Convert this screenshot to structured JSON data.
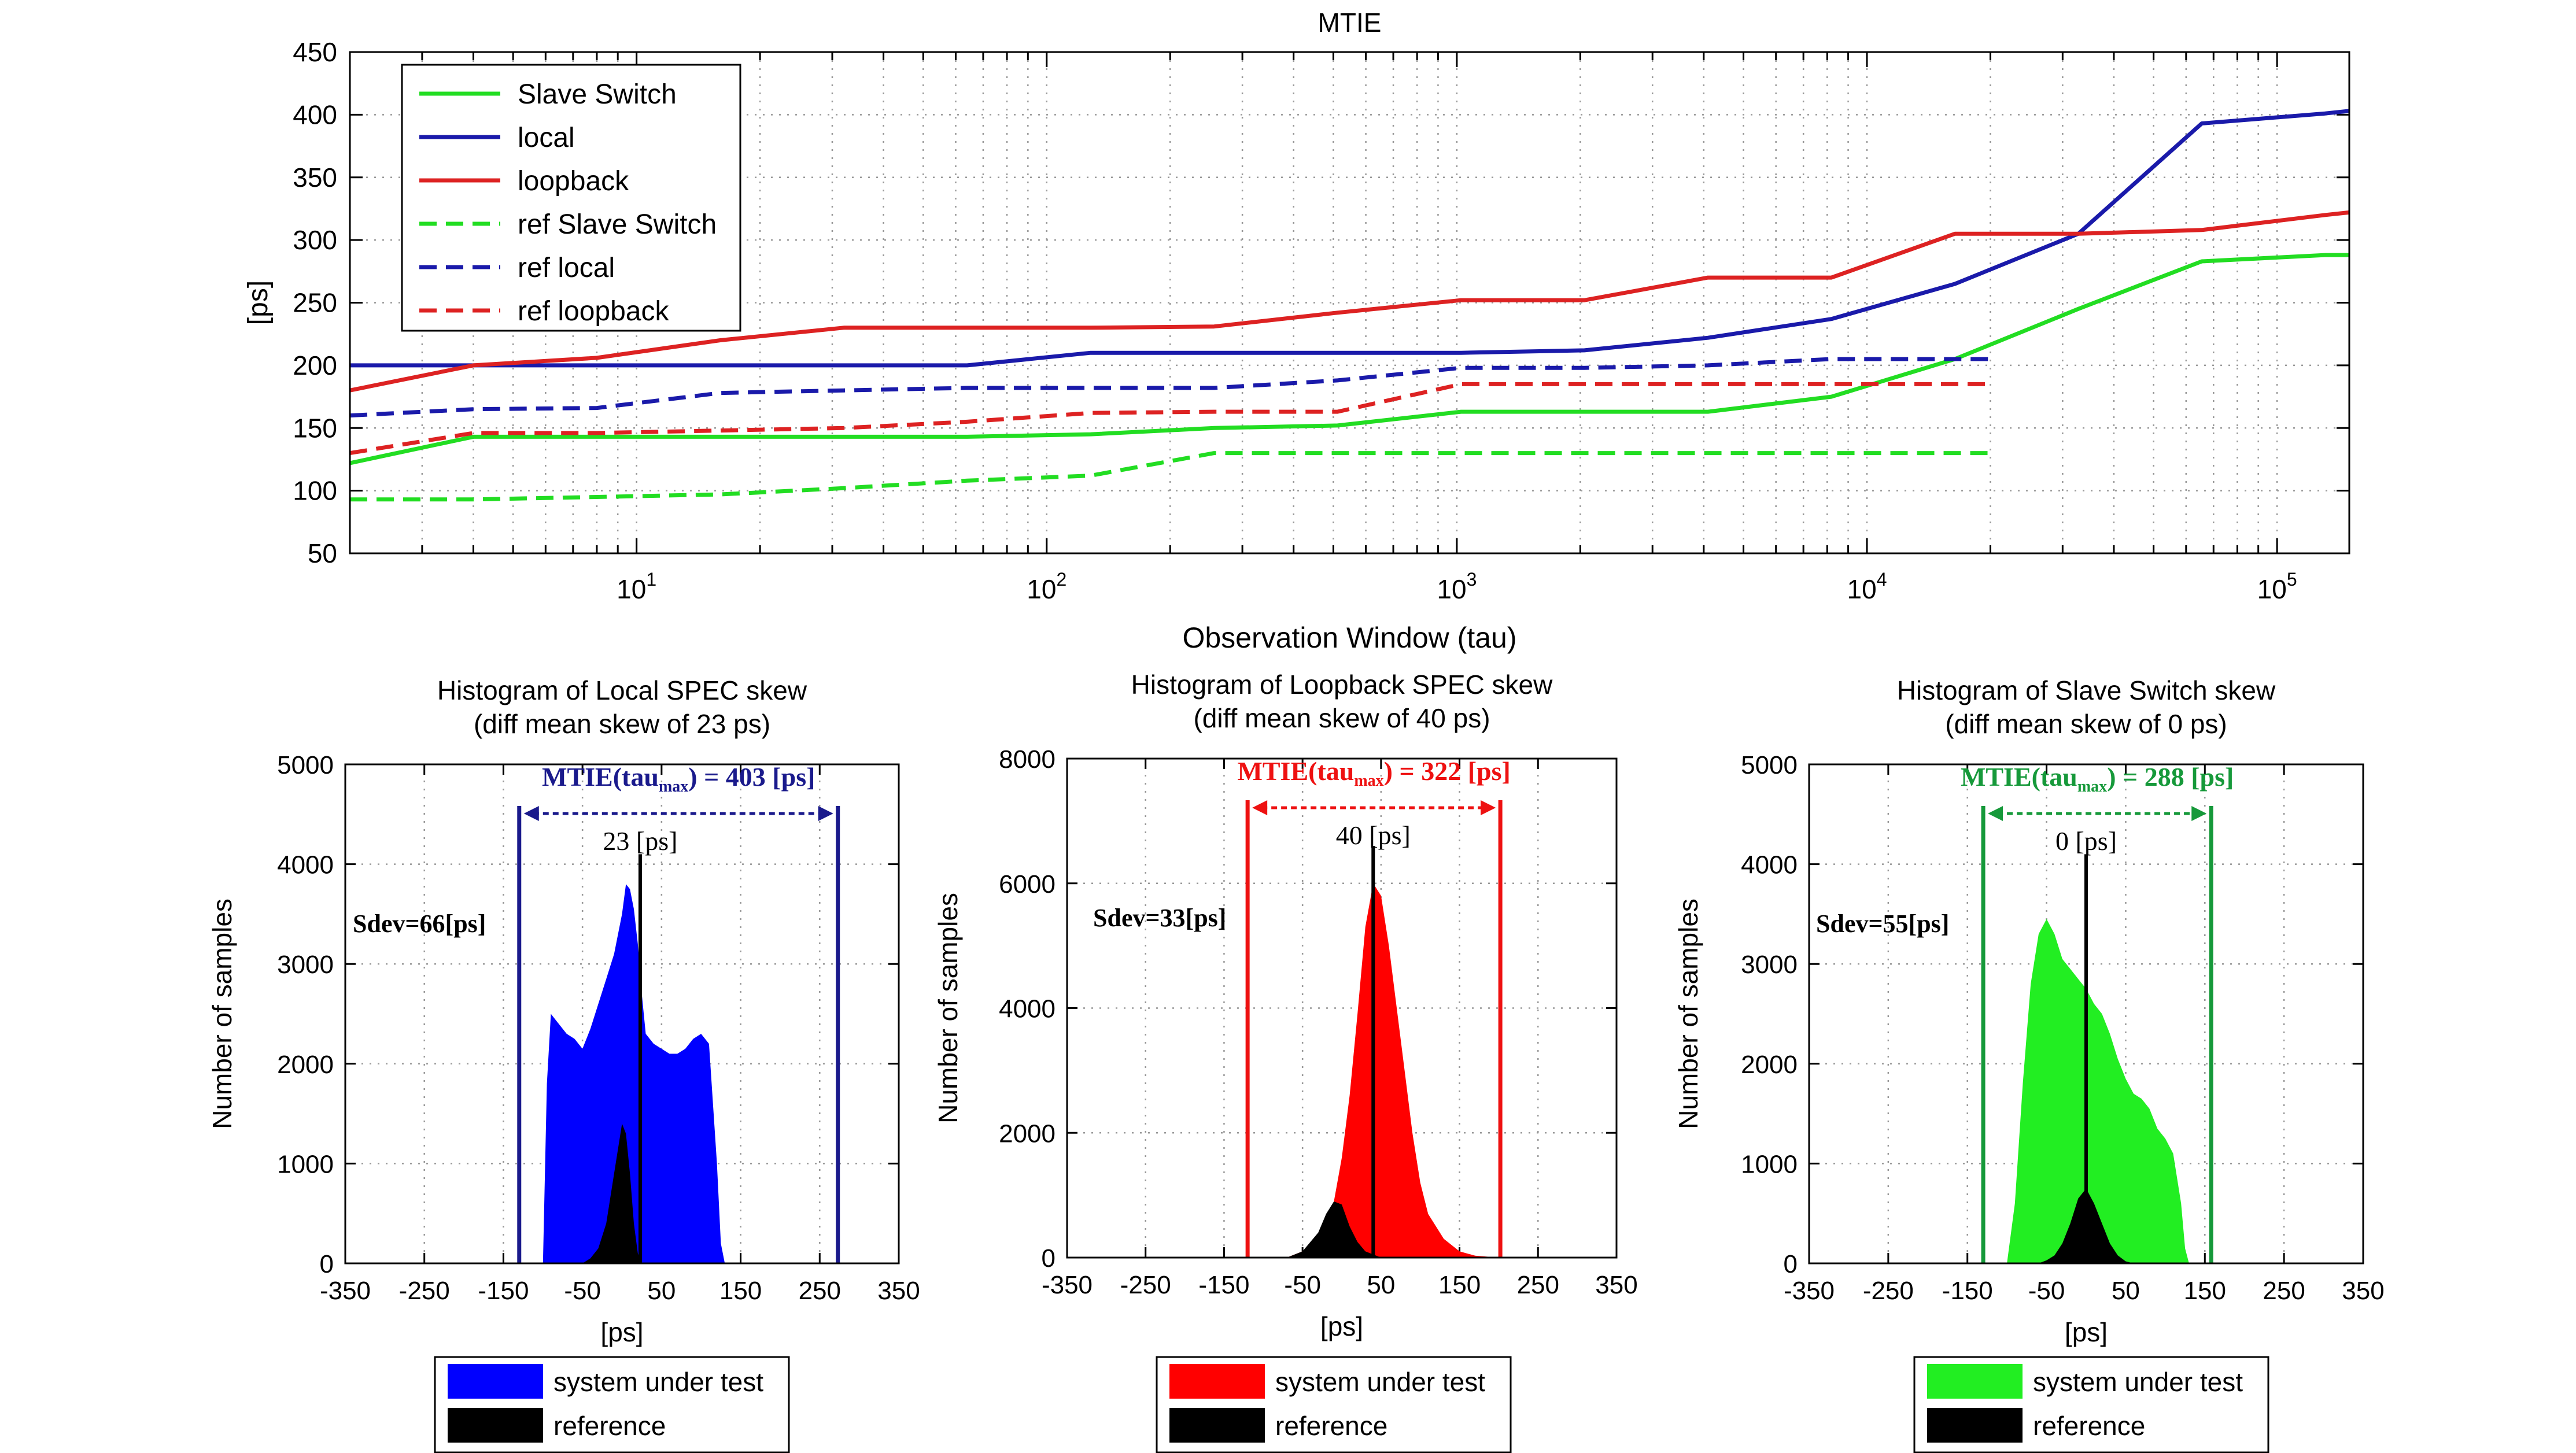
{
  "chart_data": [
    {
      "type": "line",
      "title": "MTIE",
      "xlabel": "Observation Window (tau)",
      "ylabel": "[ps]",
      "xscale": "log",
      "xlim": [
        2,
        150000
      ],
      "ylim": [
        50,
        450
      ],
      "yticks": [
        50,
        100,
        150,
        200,
        250,
        300,
        350,
        400,
        450
      ],
      "xticks": [
        {
          "base": "10",
          "exp": "1"
        },
        {
          "base": "10",
          "exp": "2"
        },
        {
          "base": "10",
          "exp": "3"
        },
        {
          "base": "10",
          "exp": "4"
        },
        {
          "base": "10",
          "exp": "5"
        }
      ],
      "grid": true,
      "legend_position": "top-left",
      "series": [
        {
          "name": "Slave Switch",
          "color": "#22dd22",
          "dash": false,
          "x": [
            2,
            4,
            8,
            16,
            32,
            64,
            128,
            256,
            512,
            1024,
            2048,
            4096,
            8192,
            16384,
            32768,
            65536,
            131072,
            150000
          ],
          "y": [
            122,
            143,
            143,
            143,
            143,
            143,
            145,
            150,
            152,
            163,
            163,
            163,
            175,
            205,
            245,
            283,
            288,
            288
          ]
        },
        {
          "name": "local",
          "color": "#1a1aaa",
          "dash": false,
          "x": [
            2,
            4,
            8,
            16,
            32,
            64,
            128,
            256,
            512,
            1024,
            2048,
            4096,
            8192,
            16384,
            32768,
            65536,
            131072,
            150000
          ],
          "y": [
            200,
            200,
            200,
            200,
            200,
            200,
            210,
            210,
            210,
            210,
            212,
            222,
            237,
            265,
            305,
            393,
            401,
            403
          ]
        },
        {
          "name": "loopback",
          "color": "#dd2222",
          "dash": false,
          "x": [
            2,
            4,
            8,
            16,
            32,
            64,
            128,
            256,
            512,
            1024,
            2048,
            4096,
            8192,
            16384,
            32768,
            65536,
            131072,
            150000
          ],
          "y": [
            180,
            200,
            206,
            220,
            230,
            230,
            230,
            231,
            242,
            252,
            252,
            270,
            270,
            305,
            305,
            308,
            320,
            322
          ]
        },
        {
          "name": "ref Slave Switch",
          "color": "#22dd22",
          "dash": true,
          "x": [
            2,
            4,
            8,
            16,
            32,
            64,
            128,
            256,
            512,
            1024,
            2048,
            4096,
            8192,
            16384,
            20000
          ],
          "y": [
            93,
            93,
            95,
            97,
            102,
            108,
            112,
            130,
            130,
            130,
            130,
            130,
            130,
            130,
            130
          ]
        },
        {
          "name": "ref local",
          "color": "#1a1aaa",
          "dash": true,
          "x": [
            2,
            4,
            8,
            16,
            32,
            64,
            128,
            256,
            512,
            1024,
            2048,
            4096,
            8192,
            16384,
            20000
          ],
          "y": [
            160,
            165,
            166,
            178,
            180,
            182,
            182,
            182,
            188,
            198,
            198,
            200,
            205,
            205,
            205
          ]
        },
        {
          "name": "ref loopback",
          "color": "#dd2222",
          "dash": true,
          "x": [
            2,
            4,
            8,
            16,
            32,
            64,
            128,
            256,
            512,
            1024,
            2048,
            4096,
            8192,
            16384,
            20000
          ],
          "y": [
            130,
            146,
            146,
            148,
            150,
            155,
            162,
            163,
            163,
            185,
            185,
            185,
            185,
            185,
            185
          ]
        }
      ]
    },
    {
      "type": "histogram",
      "title": "Histogram of Local SPEC skew",
      "subtitle": "(diff mean skew of 23 ps)",
      "xlabel": "[ps]",
      "ylabel": "Number of samples",
      "xlim": [
        -350,
        350
      ],
      "ylim": [
        0,
        5000
      ],
      "xticks": [
        -350,
        -250,
        -150,
        -50,
        50,
        150,
        250,
        350
      ],
      "yticks": [
        0,
        1000,
        2000,
        3000,
        4000,
        5000
      ],
      "grid": true,
      "color": "#0000ff",
      "bins_x": [
        -100,
        -95,
        -90,
        -80,
        -70,
        -60,
        -50,
        -40,
        -30,
        -20,
        -10,
        0,
        5,
        10,
        15,
        20,
        25,
        30,
        40,
        50,
        60,
        70,
        80,
        90,
        100,
        110,
        120,
        125,
        130
      ],
      "series": [
        {
          "name": "system under test",
          "values": [
            0,
            1800,
            2500,
            2400,
            2300,
            2250,
            2150,
            2350,
            2600,
            2850,
            3100,
            3500,
            3800,
            3750,
            3550,
            3200,
            2700,
            2300,
            2200,
            2150,
            2100,
            2100,
            2150,
            2250,
            2300,
            2200,
            1000,
            200,
            0
          ]
        },
        {
          "name": "reference",
          "values": [
            0,
            0,
            0,
            0,
            0,
            0,
            0,
            50,
            150,
            400,
            900,
            1400,
            1300,
            900,
            400,
            100,
            0,
            0,
            0,
            0,
            0,
            0,
            0,
            0,
            0,
            0,
            0,
            0,
            0
          ]
        }
      ],
      "mtie_prefix": "MTIE(tau",
      "mtie_sub": "max",
      "mtie_suffix": ") = 403 [ps]",
      "mtie_color": "#1a1a8c",
      "bound_lo": -130,
      "bound_hi": 273,
      "mean_label": "23 [ps]",
      "mean_x": 23,
      "mean_peak": 4100,
      "sdev_label": "Sdev=66[ps]",
      "legend": [
        "system under test",
        "reference"
      ]
    },
    {
      "type": "histogram",
      "title": "Histogram of Loopback SPEC skew",
      "subtitle": "(diff mean skew of 40 ps)",
      "xlabel": "[ps]",
      "ylabel": "Number of samples",
      "xlim": [
        -350,
        350
      ],
      "ylim": [
        0,
        8000
      ],
      "xticks": [
        -350,
        -250,
        -150,
        -50,
        50,
        150,
        250,
        350
      ],
      "yticks": [
        0,
        2000,
        4000,
        6000,
        8000
      ],
      "grid": true,
      "color": "#ff0000",
      "bins_x": [
        -70,
        -50,
        -30,
        -20,
        -10,
        0,
        10,
        20,
        30,
        40,
        50,
        60,
        70,
        80,
        90,
        100,
        110,
        130,
        150,
        170,
        200
      ],
      "series": [
        {
          "name": "system under test",
          "values": [
            0,
            100,
            300,
            550,
            900,
            1600,
            2600,
            3900,
            5300,
            6000,
            5800,
            5000,
            4000,
            3000,
            2000,
            1200,
            700,
            300,
            100,
            30,
            0
          ]
        },
        {
          "name": "reference",
          "values": [
            0,
            100,
            400,
            700,
            900,
            850,
            500,
            250,
            100,
            50,
            0,
            0,
            0,
            0,
            0,
            0,
            0,
            0,
            0,
            0,
            0
          ]
        }
      ],
      "mtie_prefix": "MTIE(tau",
      "mtie_sub": "max",
      "mtie_suffix": ") = 322 [ps]",
      "mtie_color": "#ee1111",
      "bound_lo": -120,
      "bound_hi": 202,
      "mean_label": "40 [ps]",
      "mean_x": 40,
      "mean_peak": 6600,
      "sdev_label": "Sdev=33[ps]",
      "legend": [
        "system under test",
        "reference"
      ]
    },
    {
      "type": "histogram",
      "title": "Histogram of Slave Switch skew",
      "subtitle": "(diff mean skew of 0 ps)",
      "xlabel": "[ps]",
      "ylabel": "Number of samples",
      "xlim": [
        -350,
        350
      ],
      "ylim": [
        0,
        5000
      ],
      "xticks": [
        -350,
        -250,
        -150,
        -50,
        50,
        150,
        250,
        350
      ],
      "yticks": [
        0,
        1000,
        2000,
        3000,
        4000,
        5000
      ],
      "grid": true,
      "color": "#22ee22",
      "bins_x": [
        -100,
        -90,
        -80,
        -70,
        -60,
        -50,
        -40,
        -30,
        -20,
        -10,
        0,
        10,
        20,
        30,
        40,
        50,
        60,
        70,
        80,
        90,
        100,
        110,
        120,
        125,
        130
      ],
      "series": [
        {
          "name": "system under test",
          "values": [
            0,
            600,
            1800,
            2800,
            3300,
            3450,
            3300,
            3050,
            2950,
            2850,
            2750,
            2600,
            2500,
            2300,
            2050,
            1850,
            1700,
            1650,
            1550,
            1350,
            1250,
            1100,
            600,
            150,
            0
          ]
        },
        {
          "name": "reference",
          "values": [
            0,
            0,
            0,
            0,
            0,
            30,
            80,
            200,
            400,
            650,
            750,
            600,
            400,
            200,
            80,
            20,
            0,
            0,
            0,
            0,
            0,
            0,
            0,
            0,
            0
          ]
        }
      ],
      "mtie_prefix": "MTIE(tau",
      "mtie_sub": "max",
      "mtie_suffix": ") = 288 [ps]",
      "mtie_color": "#16993a",
      "bound_lo": -130,
      "bound_hi": 158,
      "mean_label": "0 [ps]",
      "mean_x": 0,
      "mean_peak": 4100,
      "sdev_label": "Sdev=55[ps]",
      "legend": [
        "system under test",
        "reference"
      ]
    }
  ]
}
